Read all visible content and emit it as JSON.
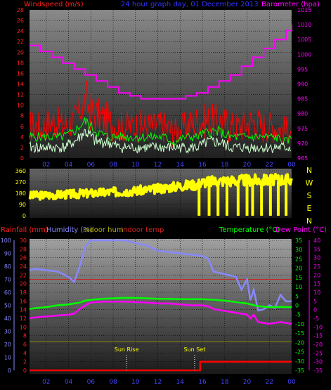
{
  "header": {
    "windspeed_label": "Windspeed (m/s)",
    "title": "24 hour graph day, 01 December 2013",
    "barometer_label": "Barometer (hpa)"
  },
  "compass": [
    "N",
    "W",
    "S",
    "E",
    "N"
  ],
  "lower_header": {
    "rainfall": "Rainfall (mm)",
    "humidity": "Humidity (%)",
    "indoor_hum": "Indoor hum",
    "indoor_temp": "Indoor temp",
    "temperature": "Temperature (°C)",
    "dew_point": "Dew Point (°C)"
  },
  "annotations": {
    "sunrise": "Sun Rise",
    "sunset": "Sun Set"
  },
  "colors": {
    "windspeed": "#ff0000",
    "gust_avg": "#00ff00",
    "wind_avg": "#ccffcc",
    "barometer": "#ff00ff",
    "direction": "#ffff00",
    "humidity": "#8888ff",
    "indoor_hum": "#888800",
    "indoor_temp": "#cc2222",
    "temperature": "#00ff00",
    "dew_point": "#ff00ff",
    "rainfall": "#ff0000",
    "panel_bg_top": "#9a9a9a",
    "panel_bg_bottom": "#222222",
    "grid": "#000000",
    "text_blue": "#3333ff"
  },
  "chart_data": [
    {
      "type": "line",
      "name": "wind-barometer",
      "x_ticks": [
        "02",
        "04",
        "06",
        "08",
        "10",
        "12",
        "14",
        "16",
        "18",
        "20",
        "22",
        "00"
      ],
      "y_left_ticks": [
        "0",
        "2",
        "4",
        "6",
        "8",
        "10",
        "12",
        "14",
        "16",
        "18",
        "20",
        "22",
        "24",
        "26",
        "28"
      ],
      "y_right_ticks": [
        "965",
        "970",
        "975",
        "980",
        "985",
        "990",
        "995",
        "1000",
        "1005",
        "1010",
        "1015"
      ],
      "ylim_left": [
        0,
        28
      ],
      "ylim_right": [
        965,
        1015
      ],
      "xlim": [
        0.5,
        24
      ],
      "series": [
        {
          "axis": "right",
          "x": [
            0.5,
            1.5,
            2.5,
            3.5,
            4.5,
            5.5,
            6.5,
            7.5,
            8.5,
            9.5,
            10.5,
            11.5,
            12.5,
            13.5,
            14.5,
            15.5,
            16.5,
            17.5,
            18.5,
            19.5,
            20.5,
            21.5,
            22.5,
            23.5,
            24
          ],
          "y": [
            1003,
            1001,
            999,
            997,
            995,
            993,
            991,
            989,
            987,
            986,
            985,
            985,
            985,
            985,
            986,
            987,
            989,
            991,
            993,
            996,
            999,
            1002,
            1005,
            1008,
            1010
          ]
        },
        {
          "axis": "left",
          "x": [
            0.5,
            1.5,
            2.5,
            3.5,
            4.5,
            5,
            5.5,
            6,
            6.5,
            7.5,
            8.5,
            9.5,
            10.5,
            11.5,
            12.5,
            13.5,
            14.5,
            15.5,
            16.5,
            17.5,
            18.5,
            19.5,
            20.5,
            21.5,
            22.5,
            23.5,
            24
          ],
          "y": [
            6,
            6,
            7,
            6,
            7,
            9,
            11,
            9,
            8,
            7,
            6,
            6,
            6,
            6,
            6,
            5,
            6,
            7,
            7,
            7,
            6,
            6,
            7,
            6,
            6,
            5,
            6
          ]
        },
        {
          "axis": "left",
          "x": [
            0.5,
            1.5,
            2.5,
            3.5,
            4.5,
            5,
            5.5,
            6,
            6.5,
            7.5,
            8.5,
            9.5,
            10.5,
            11.5,
            12.5,
            13.5,
            14.5,
            15.5,
            16.5,
            17.5,
            18.5,
            19.5,
            20.5,
            21.5,
            22.5,
            23.5,
            24
          ],
          "y": [
            4,
            4,
            4,
            4,
            5,
            6,
            7,
            6,
            5,
            4,
            4,
            4,
            4,
            4,
            4,
            3,
            4,
            4,
            5,
            5,
            4,
            4,
            4,
            4,
            4,
            3,
            4
          ]
        },
        {
          "axis": "left",
          "x": [
            0.5,
            1.5,
            2.5,
            3.5,
            4.5,
            5,
            5.5,
            6,
            6.5,
            7.5,
            8.5,
            9.5,
            10.5,
            11.5,
            12.5,
            13.5,
            14.5,
            15.5,
            16.5,
            17.5,
            18.5,
            19.5,
            20.5,
            21.5,
            22.5,
            23.5,
            24
          ],
          "y": [
            2,
            2,
            2,
            2,
            3,
            4,
            5,
            4,
            3,
            3,
            2,
            2,
            2,
            2,
            2,
            2,
            2,
            2,
            3,
            3,
            2,
            2,
            2,
            2,
            2,
            2,
            2
          ]
        }
      ]
    },
    {
      "type": "line",
      "name": "wind-direction",
      "y_ticks": [
        "360",
        "270",
        "180",
        "90",
        "0"
      ],
      "ylim": [
        0,
        360
      ],
      "xlim": [
        0.5,
        24
      ],
      "series": [
        {
          "x": [
            0.5,
            2,
            4,
            6,
            8,
            10,
            12,
            14,
            15.5,
            16,
            17,
            18,
            19,
            20,
            21,
            22,
            23,
            24
          ],
          "y": [
            160,
            165,
            172,
            180,
            190,
            200,
            215,
            240,
            250,
            270,
            275,
            280,
            280,
            285,
            285,
            285,
            290,
            290
          ]
        }
      ],
      "dropouts_x": [
        15.7,
        16.6,
        17.4,
        18.2,
        19.2,
        20.0,
        20.5,
        21.3,
        22.1,
        22.8,
        23.5
      ]
    },
    {
      "type": "line",
      "name": "temperature-humidity-rain",
      "y_humidity_ticks": [
        "0",
        "10",
        "20",
        "30",
        "40",
        "50",
        "60",
        "70",
        "80",
        "90",
        "100"
      ],
      "y_rain_ticks": [
        "0",
        "2",
        "4",
        "6",
        "8",
        "10",
        "12",
        "14",
        "16",
        "18",
        "20",
        "22",
        "24",
        "26",
        "28",
        "30"
      ],
      "y_temp_ticks": [
        "-35",
        "-30",
        "-25",
        "-20",
        "-15",
        "-10",
        "-5",
        "0",
        "5",
        "10",
        "15",
        "20",
        "25",
        "30",
        "35"
      ],
      "y_temp_ticks_right": [
        "-35",
        "-30",
        "-25",
        "-20",
        "-15",
        "-10",
        "-5",
        "0",
        "5",
        "10",
        "15",
        "20",
        "25",
        "30",
        "35",
        "40"
      ],
      "ylim_humidity": [
        0,
        100
      ],
      "ylim_temp": [
        -35,
        35
      ],
      "xlim": [
        0.5,
        24
      ],
      "series": [
        {
          "axis": "humidity",
          "x": [
            0.5,
            1,
            2,
            3,
            4,
            4.5,
            5,
            5.5,
            6,
            6.5,
            7,
            8,
            9,
            10,
            11,
            12,
            13,
            14,
            15,
            16,
            16.5,
            17,
            18,
            19,
            19.5,
            20,
            20.3,
            20.6,
            21,
            21.5,
            22,
            22.5,
            23,
            23.5,
            24
          ],
          "y": [
            77,
            78,
            77,
            76,
            72,
            68,
            80,
            95,
            100,
            100,
            100,
            100,
            100,
            98,
            96,
            92,
            91,
            90,
            89,
            88,
            86,
            76,
            74,
            72,
            62,
            70,
            54,
            62,
            46,
            47,
            50,
            48,
            58,
            53,
            53
          ]
        },
        {
          "axis": "humidity",
          "x": [
            0.5,
            24
          ],
          "y": [
            22,
            22
          ]
        },
        {
          "axis": "temp",
          "x": [
            0.5,
            24
          ],
          "y": [
            14,
            14
          ]
        },
        {
          "axis": "temp",
          "x": [
            0.5,
            1,
            2,
            3,
            4,
            5,
            5.5,
            6,
            7,
            8,
            9,
            10,
            11,
            12,
            13,
            14,
            15,
            16,
            17,
            18,
            19,
            20,
            21,
            22,
            23,
            24
          ],
          "y": [
            -2,
            -1.5,
            -1,
            0,
            0.5,
            1.5,
            2.5,
            3,
            3.5,
            3.8,
            4,
            4,
            3.8,
            3.5,
            3.5,
            3.3,
            3.3,
            3.3,
            3,
            2.5,
            1.8,
            1,
            -0.5,
            -1,
            -0.8,
            -1
          ]
        },
        {
          "axis": "temp",
          "x": [
            0.5,
            1,
            2,
            3,
            4,
            4.5,
            5,
            5.5,
            6,
            7,
            8,
            9,
            10,
            11,
            12,
            13,
            14,
            15,
            16,
            16.5,
            17,
            18,
            19,
            20,
            20.3,
            20.6,
            21,
            22,
            23,
            24
          ],
          "y": [
            -7,
            -6.5,
            -6,
            -5.5,
            -5,
            -4.5,
            -2,
            0,
            1.5,
            2,
            2,
            2,
            1.8,
            1.5,
            1,
            1,
            0.5,
            0,
            0,
            -0.5,
            -2,
            -3,
            -4,
            -5,
            -7,
            -5,
            -9,
            -10,
            -9,
            -10
          ]
        },
        {
          "axis": "humidity",
          "x": [
            0.5,
            15.8,
            15.8,
            24
          ],
          "y": [
            0,
            0,
            2,
            2
          ]
        }
      ],
      "sunrise_x": 9.2,
      "sunset_x": 15.3
    }
  ]
}
